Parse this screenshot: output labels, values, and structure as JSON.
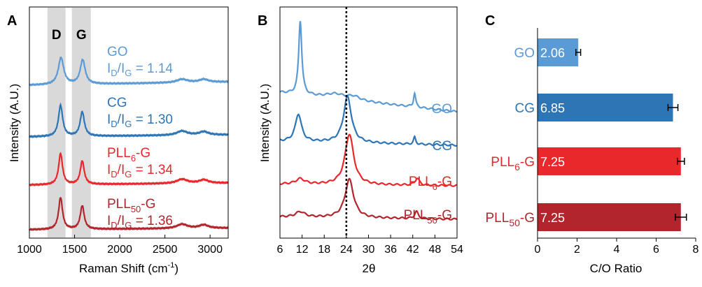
{
  "colors": {
    "go": "#5b9bd5",
    "cg": "#2e75b6",
    "pll6": "#e8282b",
    "pll50": "#b3252c",
    "band": "#d9d9d9"
  },
  "chart_data": [
    {
      "id": "A",
      "panel_label": "A",
      "type": "line",
      "xlabel": "Raman Shift (cm-1)",
      "xlabel_main": "Raman Shift (cm",
      "xlabel_sup": "-1",
      "xlabel_end": ")",
      "ylabel": "Intensity (A.U.)",
      "xlim": [
        1000,
        3200
      ],
      "xticks": [
        "1000",
        "1500",
        "2000",
        "2500",
        "3000"
      ],
      "band_labels": [
        "D",
        "G"
      ],
      "bands": [
        [
          1200,
          1400
        ],
        [
          1470,
          1680
        ]
      ],
      "grid": false,
      "series": [
        {
          "name": "GO",
          "label_main": "GO",
          "ratio_text": "I/I = 1.14",
          "ratio_value": "= 1.14",
          "color": "#5b9bd5",
          "peaks": [
            {
              "x": 1350,
              "h": 0.64,
              "w": 36
            },
            {
              "x": 1590,
              "h": 0.58,
              "w": 33
            },
            {
              "x": 2690,
              "h": 0.08,
              "w": 70
            },
            {
              "x": 2930,
              "h": 0.07,
              "w": 60
            }
          ],
          "tilt": 0.08
        },
        {
          "name": "CG",
          "label_main": "CG",
          "ratio_text": "I/I = 1.30",
          "ratio_value": "= 1.30",
          "color": "#2e75b6",
          "peaks": [
            {
              "x": 1345,
              "h": 0.74,
              "w": 28
            },
            {
              "x": 1585,
              "h": 0.58,
              "w": 28
            },
            {
              "x": 2690,
              "h": 0.1,
              "w": 70
            },
            {
              "x": 2930,
              "h": 0.08,
              "w": 60
            }
          ],
          "tilt": 0.05
        },
        {
          "name": "PLL6-G",
          "label_main": "PLL",
          "label_sub": "6",
          "label_end": "-G",
          "ratio_text": "I/I = 1.34",
          "ratio_value": "= 1.34",
          "color": "#e8282b",
          "peaks": [
            {
              "x": 1345,
              "h": 0.74,
              "w": 26
            },
            {
              "x": 1585,
              "h": 0.56,
              "w": 26
            },
            {
              "x": 2690,
              "h": 0.1,
              "w": 70
            },
            {
              "x": 2930,
              "h": 0.08,
              "w": 60
            }
          ],
          "tilt": 0.05
        },
        {
          "name": "PLL50-G",
          "label_main": "PLL",
          "label_sub": "50",
          "label_end": "-G",
          "ratio_text": "I/I = 1.36",
          "ratio_value": "= 1.36",
          "color": "#b3252c",
          "peaks": [
            {
              "x": 1345,
              "h": 0.76,
              "w": 26
            },
            {
              "x": 1585,
              "h": 0.56,
              "w": 26
            },
            {
              "x": 2690,
              "h": 0.1,
              "w": 70
            },
            {
              "x": 2930,
              "h": 0.08,
              "w": 60
            }
          ],
          "tilt": 0.04
        }
      ]
    },
    {
      "id": "B",
      "panel_label": "B",
      "type": "line",
      "xlabel": "2θ",
      "ylabel": "Intensity (A.U.)",
      "xlim": [
        6,
        54
      ],
      "xticks": [
        "6",
        "12",
        "18",
        "24",
        "30",
        "36",
        "42",
        "48",
        "54"
      ],
      "reference_line_x": 24,
      "grid": false,
      "series": [
        {
          "name": "GO",
          "label_main": "GO",
          "color": "#5b9bd5",
          "peaks": [
            {
              "x": 11.5,
              "h": 0.96,
              "w": 0.5
            },
            {
              "x": 21,
              "h": 0.06,
              "w": 3
            },
            {
              "x": 26,
              "h": 0.05,
              "w": 2
            },
            {
              "x": 42.5,
              "h": 0.18,
              "w": 0.35
            }
          ],
          "tilt": 0.25
        },
        {
          "name": "CG",
          "label_main": "CG",
          "color": "#2e75b6",
          "peaks": [
            {
              "x": 11,
              "h": 0.36,
              "w": 1.0
            },
            {
              "x": 24.3,
              "h": 0.6,
              "w": 1.3
            },
            {
              "x": 42.5,
              "h": 0.09,
              "w": 0.35
            }
          ],
          "tilt": 0.05
        },
        {
          "name": "PLL6-G",
          "label_main": "PLL",
          "label_sub": "6",
          "label_end": "-G",
          "color": "#e8282b",
          "peaks": [
            {
              "x": 11.5,
              "h": 0.07,
              "w": 1.5
            },
            {
              "x": 24.8,
              "h": 0.66,
              "w": 1.4
            },
            {
              "x": 43.2,
              "h": 0.09,
              "w": 0.7
            }
          ],
          "tilt": 0.02
        },
        {
          "name": "PLL50-G",
          "label_main": "PLL",
          "label_sub": "50",
          "label_end": "-G",
          "color": "#b3252c",
          "peaks": [
            {
              "x": 11.5,
              "h": 0.07,
              "w": 1.5
            },
            {
              "x": 24.8,
              "h": 0.5,
              "w": 1.4
            },
            {
              "x": 43,
              "h": 0.09,
              "w": 0.6
            }
          ],
          "tilt": 0.03
        }
      ]
    },
    {
      "id": "C",
      "panel_label": "C",
      "type": "bar",
      "orientation": "horizontal",
      "xlabel": "C/O Ratio",
      "xlim": [
        0,
        8
      ],
      "xticks": [
        "0",
        "2",
        "4",
        "6",
        "8"
      ],
      "grid": false,
      "categories": [
        {
          "name": "GO",
          "label_main": "GO",
          "color": "#5b9bd5"
        },
        {
          "name": "CG",
          "label_main": "CG",
          "color": "#2e75b6"
        },
        {
          "name": "PLL6-G",
          "label_main": "PLL",
          "label_sub": "6",
          "label_end": "-G",
          "color": "#e8282b"
        },
        {
          "name": "PLL50-G",
          "label_main": "PLL",
          "label_sub": "50",
          "label_end": "-G",
          "color": "#b3252c"
        }
      ],
      "values": [
        2.06,
        6.85,
        7.25,
        7.25
      ],
      "value_labels": [
        "2.06",
        "6.85",
        "7.25",
        "7.25"
      ],
      "errors": [
        0.12,
        0.25,
        0.18,
        0.28
      ]
    }
  ]
}
